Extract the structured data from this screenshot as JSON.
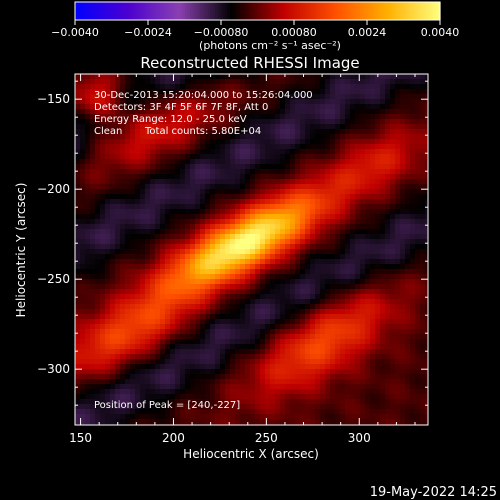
{
  "chart_data": {
    "type": "heatmap",
    "title": "Reconstructed RHESSI Image",
    "xlabel": "Heliocentric X (arcsec)",
    "ylabel": "Heliocentric Y (arcsec)",
    "xlim": [
      147,
      337
    ],
    "ylim": [
      -331,
      -136
    ],
    "x_ticks": [
      {
        "value": 150,
        "label": "150"
      },
      {
        "value": 200,
        "label": "200"
      },
      {
        "value": 250,
        "label": "250"
      },
      {
        "value": 300,
        "label": "300"
      }
    ],
    "y_ticks": [
      {
        "value": -150,
        "label": "−150"
      },
      {
        "value": -200,
        "label": "−200"
      },
      {
        "value": -250,
        "label": "−250"
      },
      {
        "value": -300,
        "label": "−300"
      }
    ],
    "colorbar": {
      "range": [
        -0.004,
        0.004
      ],
      "ticks": [
        {
          "value": -0.004,
          "label": "−0.0040"
        },
        {
          "value": -0.0024,
          "label": "−0.0024"
        },
        {
          "value": -0.0008,
          "label": "−0.00080"
        },
        {
          "value": 0.0008,
          "label": "0.00080"
        },
        {
          "value": 0.0024,
          "label": "0.0024"
        },
        {
          "value": 0.004,
          "label": "0.0040"
        }
      ],
      "units": "(photons cm⁻² s⁻¹ asec⁻²)",
      "colors": [
        "#0000ff",
        "#4a00d0",
        "#8a40b0",
        "#000000",
        "#c00000",
        "#ff5000",
        "#ffb000",
        "#ffff80"
      ]
    },
    "annotations": {
      "time": "30-Dec-2013 15:20:04.000 to 15:26:04.000",
      "detectors": "Detectors: 3F 4F 5F 6F 7F 8F, Att 0",
      "energy": "Energy Range: 12.0 - 25.0 keV",
      "method": "Clean",
      "counts": "Total counts: 5.80E+04",
      "peak": "Position of Peak = [240,-227]"
    },
    "peak": {
      "x": 240,
      "y": -227
    },
    "sources": [
      {
        "x": 238,
        "y": -230,
        "amplitude": 0.0042,
        "sigma_major": 32,
        "sigma_minor": 10,
        "angle_deg": 30
      },
      {
        "x": 190,
        "y": -165,
        "amplitude": 0.0012,
        "sigma_major": 28,
        "sigma_minor": 12,
        "angle_deg": 28
      },
      {
        "x": 160,
        "y": -150,
        "amplitude": 0.0013,
        "sigma_major": 10,
        "sigma_minor": 10,
        "angle_deg": 0
      },
      {
        "x": 175,
        "y": -280,
        "amplitude": 0.0016,
        "sigma_major": 28,
        "sigma_minor": 11,
        "angle_deg": 30
      },
      {
        "x": 280,
        "y": -285,
        "amplitude": 0.0017,
        "sigma_major": 30,
        "sigma_minor": 12,
        "angle_deg": 35
      },
      {
        "x": 310,
        "y": -185,
        "amplitude": 0.001,
        "sigma_major": 20,
        "sigma_minor": 10,
        "angle_deg": 30
      }
    ],
    "negative_bands": [
      {
        "offset": 42,
        "amplitude": -0.0008
      },
      {
        "offset": -42,
        "amplitude": -0.0008
      },
      {
        "offset": 95,
        "amplitude": -0.0009
      }
    ],
    "background": -0.00015
  },
  "footer": {
    "date": "19-May-2022 14:25"
  }
}
